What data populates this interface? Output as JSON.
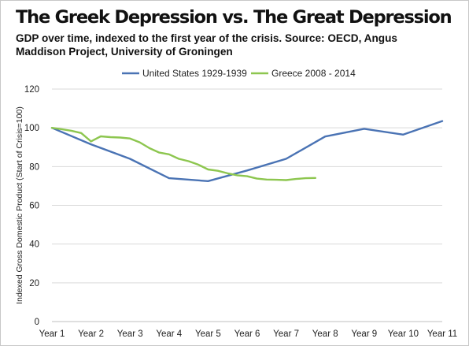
{
  "header": {
    "title": "The Greek Depression vs. The Great Depression",
    "subtitle": "GDP over time, indexed to the first year of the crisis. Source: OECD, Angus Maddison Project, University of Groningen"
  },
  "chart_data": {
    "type": "line",
    "categories": [
      "Year 1",
      "Year 2",
      "Year 3",
      "Year 4",
      "Year 5",
      "Year 6",
      "Year 7",
      "Year 8",
      "Year 9",
      "Year 10",
      "Year 11"
    ],
    "series": [
      {
        "name": "United States 1929-1939",
        "color": "#4a73b4",
        "x": [
          1,
          2,
          3,
          4,
          5,
          6,
          7,
          8,
          9,
          10,
          11
        ],
        "values": [
          100,
          91.5,
          84,
          74,
          72.5,
          78,
          84,
          95.5,
          99.5,
          96.5,
          103.5
        ]
      },
      {
        "name": "Greece 2008 - 2014",
        "color": "#8dc64f",
        "x": [
          1,
          1.25,
          1.5,
          1.75,
          2,
          2.25,
          2.5,
          2.75,
          3,
          3.25,
          3.5,
          3.75,
          4,
          4.25,
          4.5,
          4.75,
          5,
          5.25,
          5.5,
          5.75,
          6,
          6.25,
          6.5,
          6.75,
          7,
          7.25,
          7.5,
          7.75
        ],
        "values": [
          100,
          99.3,
          98.5,
          97.3,
          93,
          95.6,
          95.2,
          95,
          94.5,
          92.5,
          89.5,
          87.2,
          86.3,
          84,
          82.8,
          81,
          78.5,
          77.8,
          76.5,
          75.5,
          75,
          73.8,
          73.3,
          73.2,
          73,
          73.6,
          74,
          74.1
        ]
      }
    ],
    "ylabel": "Indexed Gross Domestic Product (Start of Crisis=100)",
    "xlabel": "",
    "ylim": [
      0,
      120
    ],
    "yticks": [
      0,
      20,
      40,
      60,
      80,
      100,
      120
    ],
    "grid": "horizontal",
    "legend": "top-center"
  }
}
